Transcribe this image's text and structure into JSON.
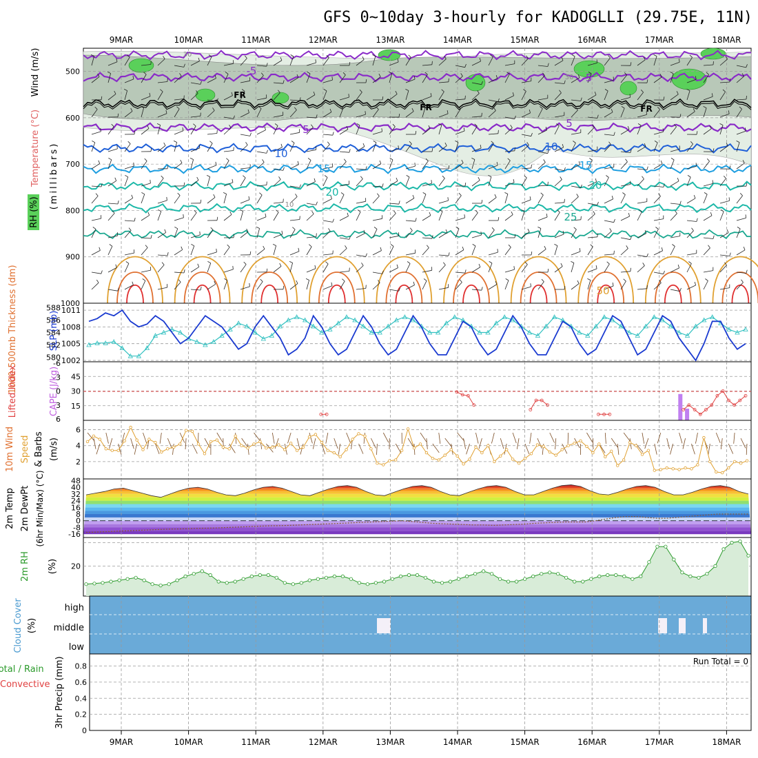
{
  "title": "GFS 0~10day 3-hourly for KADOGLLI (29.75E, 11N)",
  "colors": {
    "rh_green": "#5ad05a",
    "rh_gray": "#b8c8b8",
    "temp_purple": "#8a2bc8",
    "temp_blue": "#1e5fd8",
    "temp_lightblue": "#1e9ee0",
    "temp_teal": "#1cb8a8",
    "temp_orange": "#e0a030",
    "temp_red": "#e03030",
    "slp": "#1a3ad0",
    "thickness": "#30c0c0",
    "cape": "#c080f0",
    "lifted_index": "#e04040",
    "wind_speed": "#e0a030",
    "rh2m": "#2a9a2a",
    "cloud": "#6aaad8"
  },
  "panels": {
    "upper": {
      "ylabel_wind": "Wind (m/s)",
      "ylabel_temp": "Temperature (°C)",
      "ylabel_rh": "RH (%)",
      "ylabel_unit": "(millibars)",
      "yticks": [
        "500",
        "600",
        "700",
        "800",
        "900",
        "1000"
      ],
      "contour_labels": [
        "-5",
        "-5",
        "FR",
        "FR",
        "FR",
        "5",
        "5",
        "10",
        "10",
        "15",
        "15",
        "20",
        "20",
        "25",
        "30",
        "30",
        "10",
        "50"
      ]
    },
    "pressure": {
      "label_thickness": "1000-500mb Thickness (dm)",
      "label_slp": "SLP (mb)",
      "yticks_left": [
        "588",
        "586",
        "584",
        "582",
        "580"
      ],
      "yticks_right": [
        "1011",
        "1008",
        "1005",
        "1002"
      ]
    },
    "convection": {
      "label_li": "Lifted Index",
      "label_cape": "CAPE (J/kg)",
      "yticks_left": [
        "-6",
        "-3",
        "0",
        "3",
        "6"
      ],
      "yticks_right": [
        "45",
        "30",
        "15"
      ]
    },
    "wind10m": {
      "label": "10m Wind",
      "label2": "Speed",
      "label3": "& Barbs",
      "unit": "(m/s)",
      "yticks": [
        "6",
        "4",
        "2"
      ]
    },
    "temp2m": {
      "label": "2m Temp",
      "label2": "2m DewPt",
      "label3": "(6hr Min/Max) (°C)",
      "yticks": [
        "48",
        "40",
        "32",
        "24",
        "16",
        "8",
        "0",
        "-8",
        "-16"
      ]
    },
    "rh2m": {
      "label": "2m RH",
      "unit": "(%)",
      "yticks": [
        "20"
      ]
    },
    "cloud": {
      "label": "Cloud Cover",
      "unit": "(%)",
      "levels": [
        "high",
        "middle",
        "low"
      ]
    },
    "precip": {
      "label": "Total / Rain",
      "label2": "Convective",
      "ylabel": "3hr Precip (mm)",
      "run_total": "Run Total = 0",
      "yticks": [
        "0.8",
        "0.6",
        "0.4",
        "0.2",
        "0"
      ]
    }
  },
  "chart_data": {
    "type": "line",
    "dates": [
      "9MAR",
      "10MAR",
      "11MAR",
      "12MAR",
      "13MAR",
      "14MAR",
      "15MAR",
      "16MAR",
      "17MAR",
      "18MAR"
    ],
    "slp_mb": [
      1009,
      1009.5,
      1010.5,
      1010,
      1011,
      1009,
      1008,
      1008.5,
      1010,
      1009,
      1007,
      1005,
      1006,
      1008,
      1010,
      1009,
      1008,
      1006,
      1004,
      1005,
      1008,
      1010,
      1008,
      1006,
      1003,
      1004,
      1006,
      1010,
      1008,
      1005,
      1003,
      1004,
      1007,
      1010,
      1008,
      1005,
      1003,
      1004,
      1007,
      1010,
      1008,
      1005,
      1003,
      1003,
      1006,
      1009,
      1008,
      1005,
      1003,
      1004,
      1007,
      1010,
      1008,
      1005,
      1003,
      1003,
      1006,
      1009,
      1008,
      1005,
      1003,
      1004,
      1007,
      1010,
      1009,
      1006,
      1003,
      1004,
      1007,
      1010,
      1009,
      1006,
      1004,
      1002,
      1005,
      1009,
      1009,
      1006,
      1004,
      1005
    ],
    "thickness_dm": [
      582,
      582.3,
      582.3,
      582.5,
      581.5,
      580.2,
      580.2,
      581.5,
      583.5,
      584,
      584.5,
      584,
      583,
      582.5,
      582,
      582.5,
      583.5,
      584.5,
      585.5,
      585,
      584,
      583,
      583.5,
      585,
      586,
      586.5,
      586,
      585,
      584,
      584.5,
      585.5,
      586.5,
      586,
      585,
      584,
      584,
      585,
      586,
      586.5,
      586,
      585,
      584,
      584,
      585.5,
      586.5,
      586,
      585,
      584,
      584,
      585.5,
      586.5,
      586,
      585,
      584,
      583.5,
      585,
      586.5,
      586,
      585,
      584,
      583.5,
      585,
      586.5,
      586,
      585,
      584,
      583.5,
      585,
      586.5,
      586,
      585,
      584,
      583.5,
      585,
      586,
      586.5,
      585.5,
      584.5,
      584,
      584.5
    ],
    "li_red_segment_times": [
      "14MAR",
      "15MAR",
      "16MAR",
      "17MAR"
    ],
    "cape_jkg": [
      {
        "t": 66.5,
        "v": 27
      },
      {
        "t": 67.3,
        "v": 12
      },
      {
        "t": 77.0,
        "v": 5
      },
      {
        "t": 78.0,
        "v": 3
      },
      {
        "t": 79.0,
        "v": 9
      },
      {
        "t": 79.6,
        "v": 58
      },
      {
        "t": 80.1,
        "v": 34
      },
      {
        "t": 80.6,
        "v": 20
      },
      {
        "t": 81.3,
        "v": 2
      }
    ],
    "lifted_index": [
      6,
      6,
      6,
      6,
      6,
      6,
      6,
      6,
      6,
      6,
      6,
      6,
      6,
      6,
      6,
      6,
      6,
      6,
      6,
      6,
      6,
      6,
      6,
      6,
      6,
      6,
      6,
      6,
      6,
      6,
      6,
      6,
      6,
      6,
      6,
      6,
      6,
      6,
      6,
      6,
      6,
      5,
      5,
      6,
      6,
      6,
      6,
      6,
      6,
      6,
      6,
      6,
      6,
      6,
      6,
      6,
      6,
      6,
      6,
      6,
      6,
      6,
      6,
      6,
      6,
      0.2,
      0.8,
      1,
      3,
      6,
      6,
      6,
      6,
      6,
      6,
      6,
      6,
      6,
      4,
      2,
      2,
      3,
      6,
      6,
      6,
      6,
      6,
      6,
      6,
      6,
      5,
      5,
      5,
      6,
      6,
      6,
      6,
      6,
      6,
      6,
      6,
      6,
      6,
      6,
      6,
      4,
      3,
      4,
      5,
      4,
      3,
      1,
      0,
      2,
      3,
      2,
      1
    ],
    "wind10m_ms": [
      4.5,
      5.2,
      4.8,
      3.6,
      3.4,
      3.4,
      4.6,
      6.3,
      4.7,
      3.5,
      4.8,
      4.4,
      3.2,
      3.6,
      3.8,
      4.2,
      5.9,
      5.8,
      4.2,
      3.0,
      4.5,
      4.7,
      3.8,
      3.6,
      5.2,
      4.0,
      3.7,
      4.2,
      4.5,
      3.7,
      3.8,
      4.1,
      3.5,
      4.3,
      3.4,
      3.8,
      5.1,
      5.4,
      4.4,
      3.4,
      3.1,
      2.6,
      3.5,
      4.8,
      5.5,
      5.2,
      3.6,
      1.8,
      1.6,
      2.1,
      2.2,
      3.4,
      6.1,
      3.7,
      4.2,
      3.1,
      2.4,
      2.2,
      2.8,
      3.5,
      2.7,
      1.7,
      2.3,
      3.8,
      3.1,
      4.0,
      2.0,
      2.7,
      3.5,
      2.3,
      1.8,
      2.4,
      3.0,
      4.1,
      3.9,
      3.2,
      2.8,
      3.5,
      4.0,
      4.3,
      4.6,
      3.9,
      3.1,
      4.2,
      2.6,
      3.3,
      1.5,
      2.2,
      4.4,
      4.0,
      2.9,
      3.4,
      0.9,
      1.0,
      1.2,
      1.1,
      1.0,
      1.2,
      1.1,
      1.6,
      5.0,
      2.0,
      0.7,
      0.6,
      1.2,
      2.0,
      1.8,
      2.1
    ],
    "temp2m_max_c": [
      31,
      33,
      35,
      38,
      39,
      36,
      33,
      30,
      28,
      32,
      36,
      39,
      40,
      38,
      34,
      31,
      30,
      33,
      37,
      40,
      41,
      39,
      35,
      31,
      30,
      34,
      38,
      41,
      42,
      40,
      35,
      31,
      30,
      34,
      38,
      41,
      42,
      40,
      35,
      31,
      30,
      34,
      38,
      41,
      42,
      40,
      35,
      31,
      31,
      35,
      39,
      42,
      43,
      41,
      36,
      32,
      31,
      34,
      38,
      41,
      42,
      40,
      35,
      31,
      31,
      34,
      38,
      41,
      42,
      40,
      35,
      32
    ],
    "dewpt2m_c": [
      -14,
      -13.5,
      -13,
      -12.5,
      -12,
      -11.5,
      -11,
      -10.5,
      -10,
      -9.8,
      -9.5,
      -9,
      -8.8,
      -8.5,
      -8,
      -7.5,
      -7,
      -6.5,
      -6,
      -5.8,
      -5.5,
      -5,
      -4.5,
      -4,
      -3.5,
      -3,
      -2.5,
      -2,
      -1.5,
      -1,
      -0.5,
      0,
      -1,
      -2,
      -3,
      -3.5,
      -4,
      -4.5,
      -5,
      -5,
      -5.5,
      -5,
      -4.5,
      -4,
      -3,
      -2.5,
      -2,
      -1.5,
      -1.5,
      -1.5,
      0,
      2,
      4,
      5,
      5,
      4,
      3,
      3,
      4,
      5,
      6,
      7,
      8,
      8,
      8,
      8
    ],
    "rh2m_pct": [
      6,
      6.5,
      7,
      8,
      9,
      10,
      11,
      9,
      6,
      5,
      6,
      9,
      12,
      14,
      16,
      13,
      8,
      7,
      8,
      10,
      12,
      13,
      13,
      11,
      7,
      6,
      7,
      9,
      10,
      11,
      12,
      12,
      10,
      7,
      6,
      7,
      8,
      10,
      12,
      13,
      13,
      11,
      8,
      7,
      8,
      10,
      12,
      14,
      16,
      14,
      10,
      8,
      8,
      10,
      12,
      14,
      15,
      14,
      11,
      8,
      8,
      10,
      12,
      13,
      13,
      12,
      10,
      12,
      23,
      35,
      35,
      25,
      15,
      12,
      11,
      14,
      20,
      33,
      38,
      39,
      28
    ],
    "cloud_high_pct": [
      100,
      70,
      100,
      100,
      100,
      100,
      100,
      100,
      100,
      100,
      100,
      100,
      100,
      100,
      100,
      100,
      100,
      100,
      100,
      100,
      100,
      100,
      100,
      100,
      100,
      100,
      100,
      100,
      100,
      100,
      100,
      100,
      100,
      100,
      100,
      100,
      100,
      100,
      100,
      90,
      80,
      60,
      70,
      100,
      100,
      100,
      100,
      100,
      70,
      60,
      70,
      90,
      60,
      70,
      100,
      100,
      100,
      100,
      100,
      100,
      100,
      100,
      100,
      100,
      100,
      100,
      70,
      50,
      80,
      100,
      100,
      80,
      70,
      100,
      100,
      100,
      100,
      100,
      100,
      90,
      70,
      70,
      80,
      60,
      80,
      100,
      100,
      100,
      100,
      100,
      70,
      60,
      80,
      90,
      70,
      80,
      80,
      100,
      100
    ],
    "precip_mm": [],
    "run_total_mm": 0
  }
}
